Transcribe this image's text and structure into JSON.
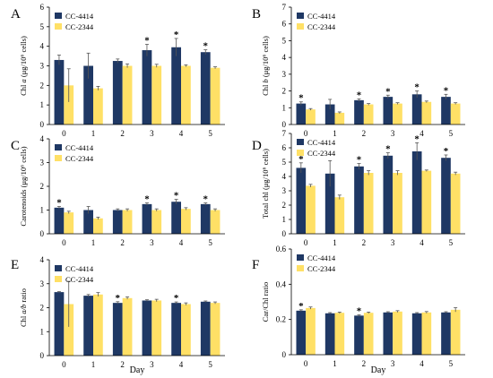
{
  "colors": {
    "CC-4414": "#1f3864",
    "CC-2344": "#ffe066",
    "error_bar": "#555555"
  },
  "x_axis_title": "Day",
  "chart_data": [
    {
      "id": "A",
      "panel_label": "A",
      "type": "bar",
      "ylabel": "Chl a (μg/10⁶ cells)",
      "ylim": [
        0,
        6
      ],
      "yticks": [
        0,
        1,
        2,
        3,
        4,
        5,
        6
      ],
      "categories": [
        "0",
        "1",
        "2",
        "3",
        "4",
        "5"
      ],
      "series": [
        {
          "name": "CC-4414",
          "values": [
            3.3,
            3.0,
            3.25,
            3.8,
            3.95,
            3.7
          ],
          "errors": [
            0.25,
            0.65,
            0.1,
            0.3,
            0.45,
            0.12
          ]
        },
        {
          "name": "CC-2344",
          "values": [
            2.0,
            1.85,
            3.0,
            3.0,
            3.0,
            2.9
          ],
          "errors": [
            0.85,
            0.1,
            0.1,
            0.08,
            0.05,
            0.05
          ]
        }
      ],
      "significant": [
        false,
        false,
        false,
        true,
        true,
        true
      ],
      "legend": "top-left",
      "grid": false
    },
    {
      "id": "B",
      "panel_label": "B",
      "type": "bar",
      "ylabel": "Chl b (μg/10⁶ cells)",
      "ylim": [
        0,
        7
      ],
      "yticks": [
        0,
        1,
        2,
        3,
        4,
        5,
        6,
        7
      ],
      "categories": [
        "0",
        "1",
        "2",
        "3",
        "4",
        "5"
      ],
      "series": [
        {
          "name": "CC-4414",
          "values": [
            1.25,
            1.2,
            1.45,
            1.65,
            1.8,
            1.65
          ],
          "errors": [
            0.1,
            0.3,
            0.08,
            0.1,
            0.2,
            0.15
          ]
        },
        {
          "name": "CC-2344",
          "values": [
            0.9,
            0.7,
            1.2,
            1.25,
            1.35,
            1.25
          ],
          "errors": [
            0.05,
            0.05,
            0.05,
            0.05,
            0.05,
            0.05
          ]
        }
      ],
      "significant": [
        true,
        false,
        true,
        true,
        true,
        true
      ],
      "legend": "top-left",
      "grid": false
    },
    {
      "id": "C",
      "panel_label": "C",
      "type": "bar",
      "ylabel": "Carotenoids (μg/10⁶ cells)",
      "ylim": [
        0,
        4
      ],
      "yticks": [
        0,
        1,
        2,
        3,
        4
      ],
      "categories": [
        "0",
        "1",
        "2",
        "3",
        "4",
        "5"
      ],
      "series": [
        {
          "name": "CC-4414",
          "values": [
            1.1,
            1.0,
            1.0,
            1.25,
            1.35,
            1.25
          ],
          "errors": [
            0.05,
            0.15,
            0.05,
            0.05,
            0.1,
            0.05
          ]
        },
        {
          "name": "CC-2344",
          "values": [
            0.9,
            0.65,
            1.0,
            1.0,
            1.05,
            1.0
          ],
          "errors": [
            0.05,
            0.05,
            0.05,
            0.05,
            0.05,
            0.05
          ]
        }
      ],
      "significant": [
        true,
        false,
        false,
        true,
        true,
        true
      ],
      "legend": "top-left",
      "grid": false
    },
    {
      "id": "D",
      "panel_label": "D",
      "type": "bar",
      "ylabel": "Total chl (μg/10⁶ cells)",
      "ylim": [
        0,
        7
      ],
      "yticks": [
        0,
        1,
        2,
        3,
        4,
        5,
        6,
        7
      ],
      "categories": [
        "0",
        "1",
        "2",
        "3",
        "4",
        "5"
      ],
      "series": [
        {
          "name": "CC-4414",
          "values": [
            4.6,
            4.2,
            4.7,
            5.45,
            5.75,
            5.3
          ],
          "errors": [
            0.35,
            0.9,
            0.2,
            0.2,
            0.6,
            0.2
          ]
        },
        {
          "name": "CC-2344",
          "values": [
            3.35,
            2.55,
            4.25,
            4.25,
            4.4,
            4.2
          ],
          "errors": [
            0.1,
            0.15,
            0.15,
            0.15,
            0.05,
            0.1
          ]
        }
      ],
      "significant": [
        true,
        false,
        true,
        true,
        true,
        true
      ],
      "legend": "top-left",
      "grid": false
    },
    {
      "id": "E",
      "panel_label": "E",
      "type": "bar",
      "ylabel": "Chl a/b ratio",
      "ylim": [
        0,
        4
      ],
      "yticks": [
        0,
        1,
        2,
        3,
        4
      ],
      "categories": [
        "0",
        "1",
        "2",
        "3",
        "4",
        "5"
      ],
      "series": [
        {
          "name": "CC-4414",
          "values": [
            2.65,
            2.5,
            2.2,
            2.3,
            2.2,
            2.25
          ],
          "errors": [
            0.02,
            0.05,
            0.05,
            0.03,
            0.04,
            0.03
          ]
        },
        {
          "name": "CC-2344",
          "values": [
            2.15,
            2.55,
            2.4,
            2.3,
            2.15,
            2.2
          ],
          "errors": [
            0.95,
            0.08,
            0.05,
            0.05,
            0.05,
            0.04
          ]
        }
      ],
      "significant": [
        false,
        false,
        true,
        false,
        true,
        false
      ],
      "legend": "top-left",
      "grid": false
    },
    {
      "id": "F",
      "panel_label": "F",
      "type": "bar",
      "ylabel": "Car/Chl ratio",
      "ylim": [
        0,
        0.6
      ],
      "yticks": [
        "0",
        "0.2",
        "0.4",
        "0.6"
      ],
      "categories": [
        "0",
        "1",
        "2",
        "3",
        "4",
        "5"
      ],
      "series": [
        {
          "name": "CC-4414",
          "values": [
            0.25,
            0.235,
            0.222,
            0.24,
            0.235,
            0.24
          ],
          "errors": [
            0.005,
            0.004,
            0.004,
            0.004,
            0.004,
            0.004
          ]
        },
        {
          "name": "CC-2344",
          "values": [
            0.265,
            0.238,
            0.238,
            0.245,
            0.24,
            0.255
          ],
          "errors": [
            0.006,
            0.004,
            0.004,
            0.005,
            0.005,
            0.012
          ]
        }
      ],
      "significant": [
        true,
        false,
        true,
        false,
        false,
        false
      ],
      "legend": "top-left",
      "grid": false
    }
  ]
}
